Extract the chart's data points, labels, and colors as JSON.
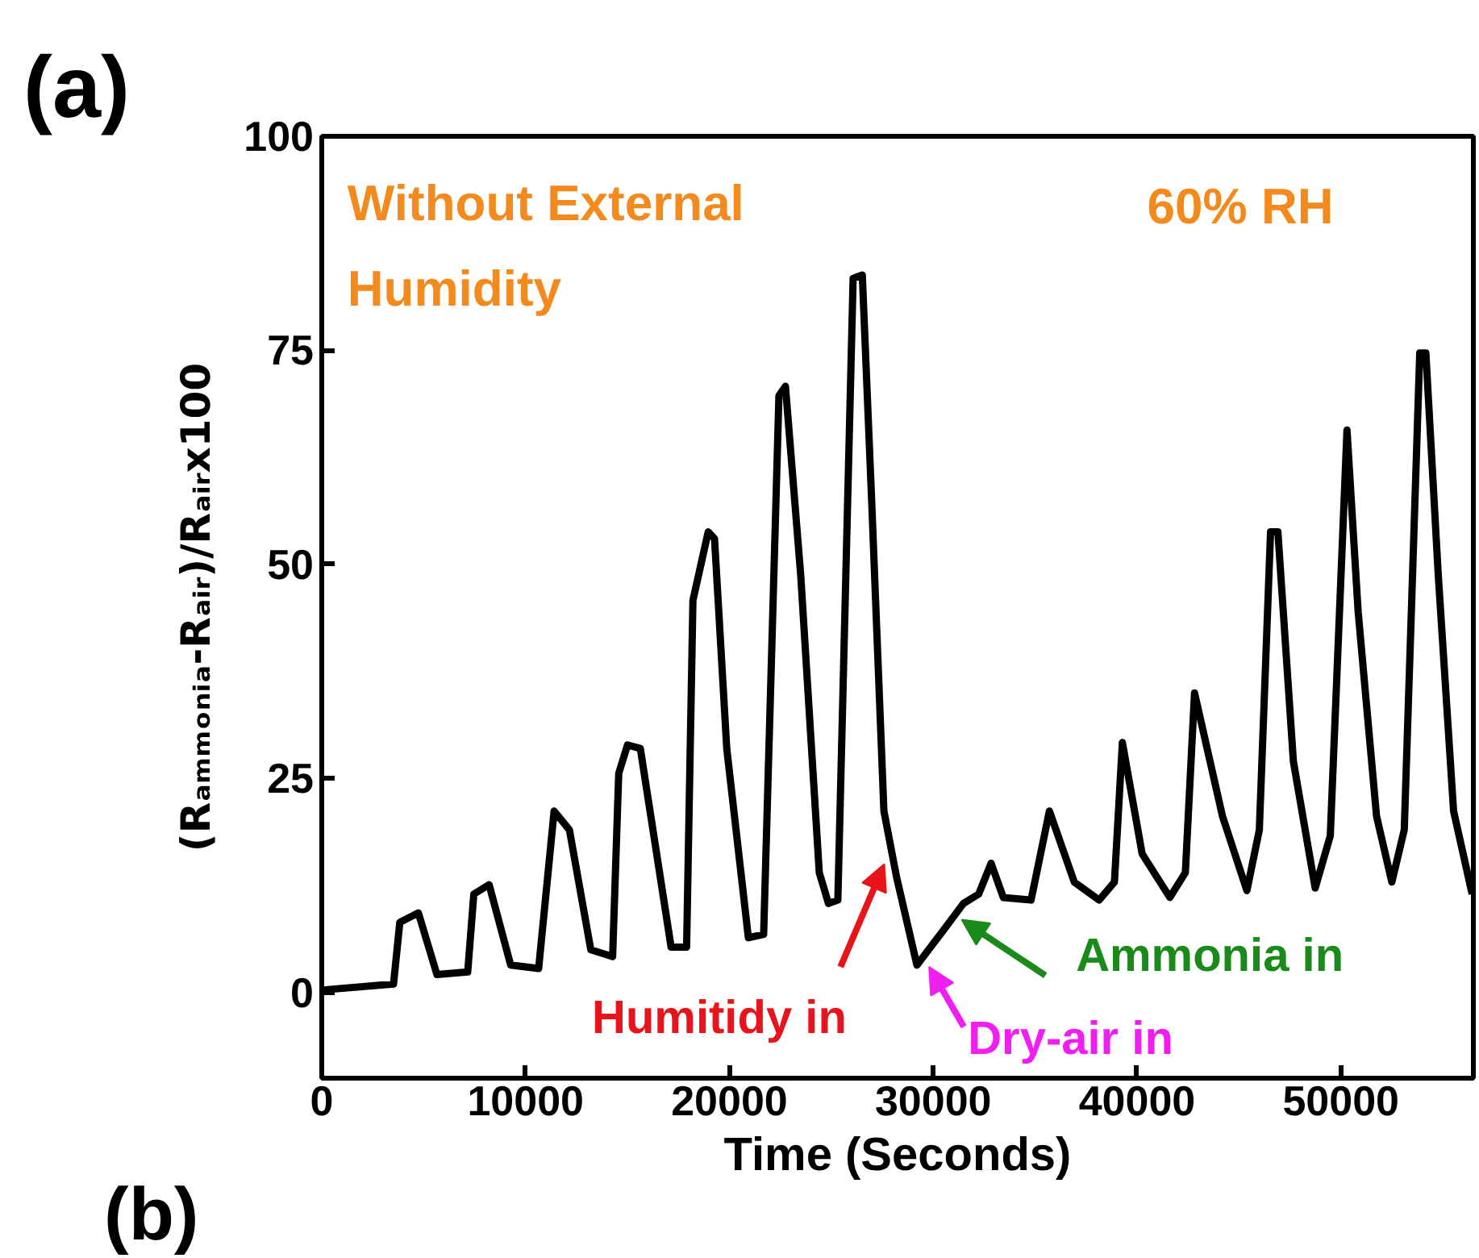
{
  "chart_data": {
    "type": "line",
    "xlabel": "Time (Seconds)",
    "ylabel": "(Rₐₘₘₒₙᵢₐ-Rₐᵢᵣ)/Rₐᵢᵣx100",
    "xlim": [
      0,
      56500
    ],
    "ylim": [
      -10,
      100
    ],
    "xticks": [
      0,
      10000,
      20000,
      30000,
      40000,
      50000
    ],
    "yticks": [
      0,
      25,
      50,
      75,
      100
    ],
    "grid": false,
    "marker": "none",
    "line_style": "solid",
    "series": [
      {
        "color": "#000000",
        "x": [
          50,
          3520,
          3830,
          4740,
          5650,
          7160,
          7460,
          8210,
          9270,
          10640,
          11400,
          12150,
          13200,
          14270,
          14570,
          15000,
          15630,
          17140,
          17900,
          18210,
          18960,
          19270,
          19870,
          20930,
          21680,
          22430,
          22750,
          23500,
          24410,
          24860,
          25320,
          26070,
          26520,
          26980,
          27580,
          28200,
          29200,
          30570,
          31480,
          32230,
          32840,
          33440,
          34800,
          35700,
          36920,
          38140,
          38890,
          39280,
          40250,
          41610,
          42370,
          42820,
          44190,
          45390,
          46000,
          46550,
          46910,
          47670,
          48740,
          49480,
          50300,
          50850,
          51750,
          52500,
          53110,
          53870,
          54170,
          54780,
          55530,
          56440
        ],
        "values": [
          0.3,
          1.0,
          8.2,
          9.3,
          2.1,
          2.4,
          11.5,
          12.6,
          3.2,
          2.8,
          21.2,
          19,
          5.0,
          4.2,
          25.6,
          28.9,
          28.5,
          5.3,
          5.3,
          45.8,
          53.8,
          53,
          28.5,
          6.4,
          6.8,
          69.7,
          70.8,
          48.7,
          14,
          10.4,
          10.8,
          83.4,
          83.8,
          57.4,
          21.2,
          13.5,
          3.2,
          7.5,
          10.4,
          11.5,
          15.1,
          11.1,
          10.8,
          21.2,
          12.9,
          10.8,
          12.9,
          29.2,
          16.2,
          11.1,
          14,
          35,
          20.6,
          11.9,
          19,
          53.8,
          53.8,
          27,
          12.2,
          18.3,
          65.7,
          44.4,
          20.6,
          12.9,
          19,
          74.7,
          74.7,
          48.7,
          21.2,
          11.5
        ]
      }
    ],
    "annotations": [
      "(a)",
      "(b)",
      "Without External Humidity",
      "60% RH",
      {
        "text": "Humitidy in",
        "x": 27600,
        "y": 15
      },
      {
        "text": "Dry-air in",
        "x": 29800,
        "y": 3
      },
      {
        "text": "Ammonia in",
        "x": 31400,
        "y": 8.5
      }
    ]
  }
}
